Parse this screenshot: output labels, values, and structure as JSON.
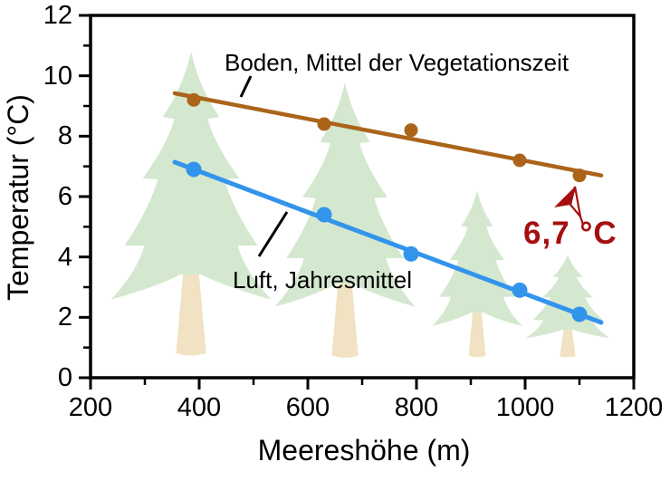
{
  "figure": {
    "background_color": "#ffffff",
    "frame_color": "#000000"
  },
  "chart_data": {
    "type": "scatter",
    "title": "",
    "xlabel": "Meereshöhe (m)",
    "ylabel": "Temperatur (°C)",
    "xlim": [
      200,
      1200
    ],
    "ylim": [
      0,
      12
    ],
    "grid": false,
    "legend_position": "inline-labels",
    "x_major_ticks": [
      200,
      400,
      600,
      800,
      1000,
      1200
    ],
    "x_minor_ticks": [
      300,
      500,
      700,
      900,
      1100
    ],
    "y_major_ticks": [
      0,
      2,
      4,
      6,
      8,
      10,
      12
    ],
    "y_minor_ticks": [
      1,
      3,
      5,
      7,
      9,
      11
    ],
    "series": [
      {
        "name": "Boden, Mittel der Vegetationszeit",
        "color": "#ab641a",
        "marker": "circle",
        "x": [
          390,
          630,
          790,
          990,
          1100
        ],
        "y": [
          9.2,
          8.4,
          8.2,
          7.2,
          6.7
        ],
        "trend_line": {
          "x1": 355,
          "y1": 9.42,
          "x2": 1140,
          "y2": 6.7
        }
      },
      {
        "name": "Luft, Jahresmittel",
        "color": "#3394ec",
        "marker": "circle",
        "x": [
          390,
          630,
          790,
          990,
          1100
        ],
        "y": [
          6.9,
          5.4,
          4.1,
          2.9,
          2.1
        ],
        "trend_line": {
          "x1": 355,
          "y1": 7.14,
          "x2": 1140,
          "y2": 1.83
        }
      }
    ],
    "annotation": {
      "text": "6,7 °C",
      "color": "#a50f0f",
      "points_to": {
        "x": 1100,
        "y": 6.7
      }
    }
  },
  "decorations": {
    "tree_foliage_color": "#d4e8cf",
    "tree_trunk_color": "#f0e2c2"
  }
}
